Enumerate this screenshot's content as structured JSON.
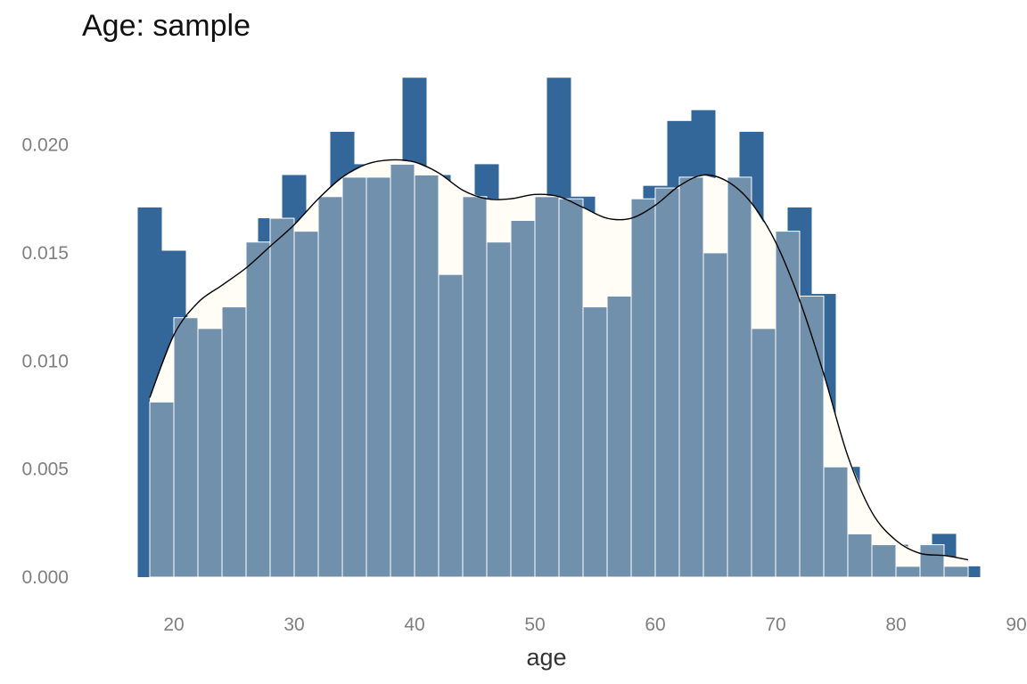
{
  "chart_data": {
    "type": "histogram",
    "title": "Age: sample",
    "xlabel": "age",
    "ylabel": "",
    "xlim": [
      14.0,
      90.0
    ],
    "ylim": [
      0,
      0.0234
    ],
    "x_ticks": [
      20,
      30,
      40,
      50,
      60,
      70,
      80,
      90
    ],
    "y_ticks": [
      0,
      0.005,
      0.01,
      0.015,
      0.02
    ],
    "y_tick_labels": [
      "0.000",
      "0.005",
      "0.010",
      "0.015",
      "0.020"
    ],
    "grid": false,
    "legend": "none",
    "colors": {
      "sample_bars": "#336699",
      "reference_bars": "#7090AC",
      "reference_bar_outline": "#ffffff",
      "density_fill": "#FFFDF5",
      "density_line": "#000000"
    },
    "series": [
      {
        "type": "bar",
        "bin_width": 2.0,
        "bin_starts": [
          17,
          19,
          21,
          23,
          25,
          27,
          29,
          31,
          33,
          35,
          37,
          39,
          41,
          43,
          45,
          47,
          49,
          51,
          53,
          55,
          57,
          59,
          61,
          63,
          65,
          67,
          69,
          71,
          73,
          75,
          77,
          79,
          81,
          83,
          85
        ],
        "values": [
          0.0171,
          0.0151,
          0.0121,
          0.0116,
          0.0126,
          0.0166,
          0.0186,
          0.0161,
          0.0206,
          0.0191,
          0.0186,
          0.0231,
          0.0186,
          0.0141,
          0.0191,
          0.0156,
          0.0166,
          0.0231,
          0.0176,
          0.0126,
          0.0131,
          0.0181,
          0.0211,
          0.0216,
          0.0151,
          0.0206,
          0.0116,
          0.0171,
          0.0131,
          0.0051,
          0.002,
          0.0015,
          0.0005,
          0.002,
          0.0005
        ]
      },
      {
        "type": "area",
        "x": [
          18,
          20,
          22,
          24,
          26,
          28,
          30,
          32,
          34,
          36,
          38,
          40,
          42,
          44,
          46,
          48,
          50,
          52,
          54,
          56,
          58,
          60,
          62,
          64,
          66,
          68,
          70,
          72,
          74,
          76,
          78,
          80,
          82,
          84,
          86
        ],
        "values": [
          0.0083,
          0.0112,
          0.0127,
          0.0135,
          0.0143,
          0.0153,
          0.0163,
          0.0175,
          0.0185,
          0.0191,
          0.0193,
          0.0192,
          0.0187,
          0.0179,
          0.0175,
          0.0175,
          0.0177,
          0.0176,
          0.0171,
          0.0166,
          0.0166,
          0.0172,
          0.0181,
          0.0186,
          0.0183,
          0.0173,
          0.0155,
          0.0128,
          0.0094,
          0.0056,
          0.003,
          0.0017,
          0.0011,
          0.001,
          0.0008
        ]
      },
      {
        "type": "bar",
        "bin_width": 2.0,
        "bin_starts": [
          18,
          20,
          22,
          24,
          26,
          28,
          30,
          32,
          34,
          36,
          38,
          40,
          42,
          44,
          46,
          48,
          50,
          52,
          54,
          56,
          58,
          60,
          62,
          64,
          66,
          68,
          70,
          72,
          74,
          76,
          78,
          80,
          82,
          84
        ],
        "values": [
          0.0081,
          0.012,
          0.0115,
          0.0125,
          0.0155,
          0.0166,
          0.016,
          0.0176,
          0.0185,
          0.0185,
          0.0191,
          0.0186,
          0.014,
          0.0176,
          0.0155,
          0.0165,
          0.0176,
          0.0175,
          0.0125,
          0.013,
          0.0175,
          0.018,
          0.0185,
          0.015,
          0.0185,
          0.0115,
          0.016,
          0.013,
          0.0051,
          0.002,
          0.0015,
          0.0005,
          0.0015,
          0.0005
        ]
      }
    ]
  }
}
